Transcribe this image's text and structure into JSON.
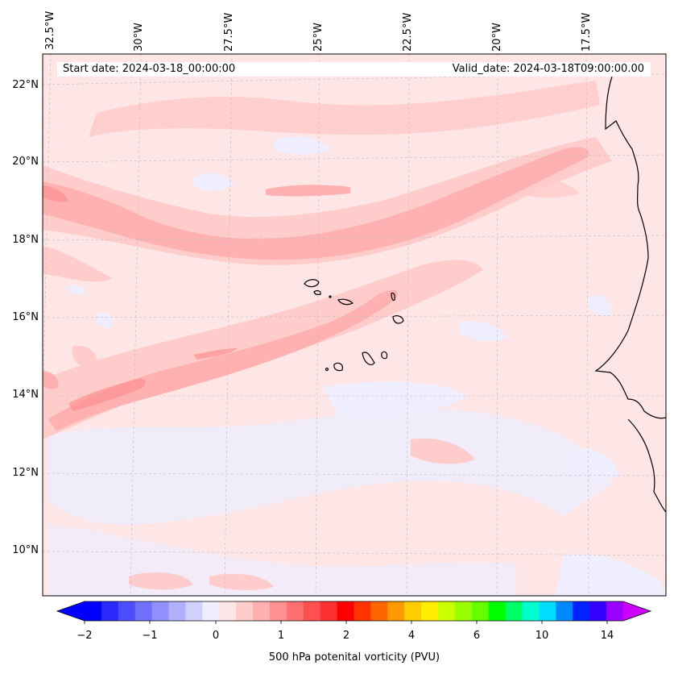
{
  "map": {
    "start_date": "Start date: 2024-03-18_00:00:00",
    "valid_date": "Valid_date: 2024-03-18T09:00:00.00",
    "lon_labels": [
      "32.5°W",
      "30°W",
      "27.5°W",
      "25°W",
      "22.5°W",
      "20°W",
      "17.5°W"
    ],
    "lat_labels": [
      "22°N",
      "20°N",
      "18°N",
      "16°N",
      "14°N",
      "12°N",
      "10°N"
    ],
    "field": "500 hPa potential vorticity",
    "region": "Cape Verde / West African coast"
  },
  "colorbar": {
    "label": "500 hPa potenital vorticity (PVU)",
    "tick_labels": [
      "−2",
      "−1",
      "0",
      "1",
      "2",
      "4",
      "6",
      "10",
      "14"
    ],
    "colors": [
      "#0000ff",
      "#2a2aff",
      "#4d4dff",
      "#7070ff",
      "#9090ff",
      "#b0b0ff",
      "#d0d0ff",
      "#eeeeff",
      "#ffe6e6",
      "#ffcccc",
      "#ffb0b0",
      "#ff9090",
      "#ff7070",
      "#ff5050",
      "#ff3030",
      "#ff0000",
      "#ff3300",
      "#ff6600",
      "#ff9900",
      "#ffcc00",
      "#ffee00",
      "#ccff00",
      "#99ff00",
      "#66ff00",
      "#00ff00",
      "#00ff66",
      "#00ffcc",
      "#00ddff",
      "#0088ff",
      "#0022ff",
      "#3300ff",
      "#9900ff"
    ],
    "extend_low": "#0000ff",
    "extend_high": "#cc00ff"
  }
}
